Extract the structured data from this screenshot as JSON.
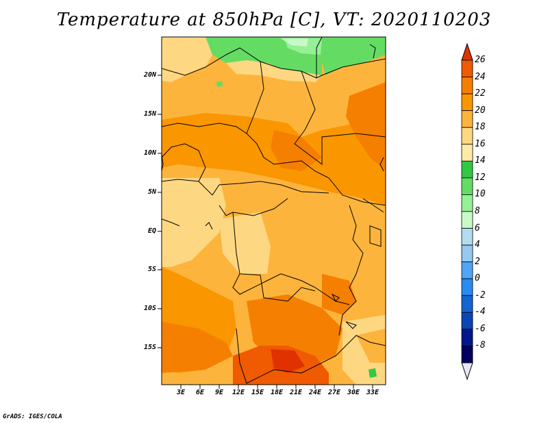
{
  "title": "Temperature at 850hPa [C], VT: 2020110203",
  "credit": "GrADS: IGES/COLA",
  "map": {
    "lat_labels": [
      "20N",
      "15N",
      "10N",
      "5N",
      "EQ",
      "5S",
      "10S",
      "15S"
    ],
    "lon_labels": [
      "3E",
      "6E",
      "9E",
      "12E",
      "15E",
      "18E",
      "21E",
      "24E",
      "27E",
      "30E",
      "33E"
    ]
  },
  "colorbar": {
    "labels": [
      "26",
      "24",
      "22",
      "20",
      "18",
      "16",
      "14",
      "12",
      "10",
      "8",
      "6",
      "4",
      "2",
      "0",
      "-2",
      "-4",
      "-6",
      "-8"
    ],
    "colors": [
      "#e03200",
      "#f05a00",
      "#f57f00",
      "#fa9600",
      "#fdb43c",
      "#fed782",
      "#fee9a6",
      "#32c846",
      "#64dc64",
      "#96f096",
      "#c8fac8",
      "#b4dcf0",
      "#96c8f0",
      "#50a5f5",
      "#288cf0",
      "#1464d2",
      "#0a46b4",
      "#03168c",
      "#000060",
      "#e6e6fa"
    ]
  }
}
